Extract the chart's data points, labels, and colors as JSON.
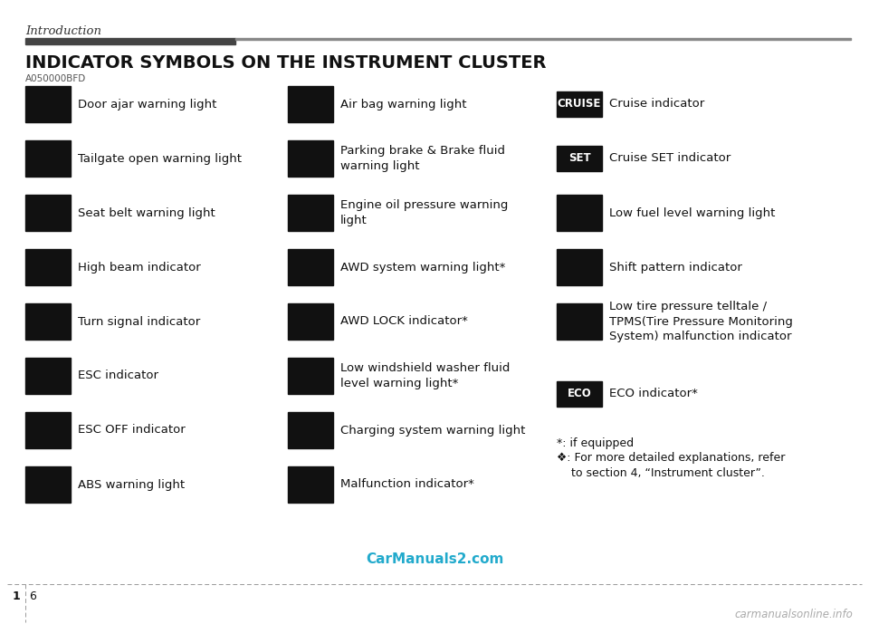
{
  "title": "INDICATOR SYMBOLS ON THE INSTRUMENT CLUSTER",
  "section": "Introduction",
  "watermark": "CarManuals2.com",
  "watermark2": "carmanualsonline.info",
  "code": "A050000BFD",
  "background": "#ffffff",
  "header_bar_dark": "#444444",
  "header_bar_light": "#888888",
  "left_col": [
    "Door ajar warning light",
    "Tailgate open warning light",
    "Seat belt warning light",
    "High beam indicator",
    "Turn signal indicator",
    "ESC indicator",
    "ESC OFF indicator",
    "ABS warning light"
  ],
  "mid_col": [
    "Air bag warning light",
    "Parking brake & Brake fluid\nwarning light",
    "Engine oil pressure warning\nlight",
    "AWD system warning light*",
    "AWD LOCK indicator*",
    "Low windshield washer fluid\nlevel warning light*",
    "Charging system warning light",
    "Malfunction indicator*"
  ],
  "right_col": [
    {
      "label": "Cruise indicator",
      "badge": "CRUISE"
    },
    {
      "label": "Cruise SET indicator",
      "badge": "SET"
    },
    {
      "label": "Low fuel level warning light",
      "badge": ""
    },
    {
      "label": "Shift pattern indicator",
      "badge": ""
    },
    {
      "label": "Low tire pressure telltale /\nTPMS(Tire Pressure Monitoring\nSystem) malfunction indicator",
      "badge": ""
    },
    {
      "label": "ECO indicator*",
      "badge": "ECO"
    }
  ],
  "footnote1": "*: if equipped",
  "footnote2": "❖: For more detailed explanations, refer\n    to section 4, “Instrument cluster”.",
  "title_fontsize": 14,
  "label_fontsize": 9.5,
  "small_fontsize": 8.5,
  "icon_color": "#111111",
  "text_color": "#111111",
  "section_color": "#333333",
  "watermark_color": "#22aacc",
  "watermark2_color": "#aaaaaa"
}
